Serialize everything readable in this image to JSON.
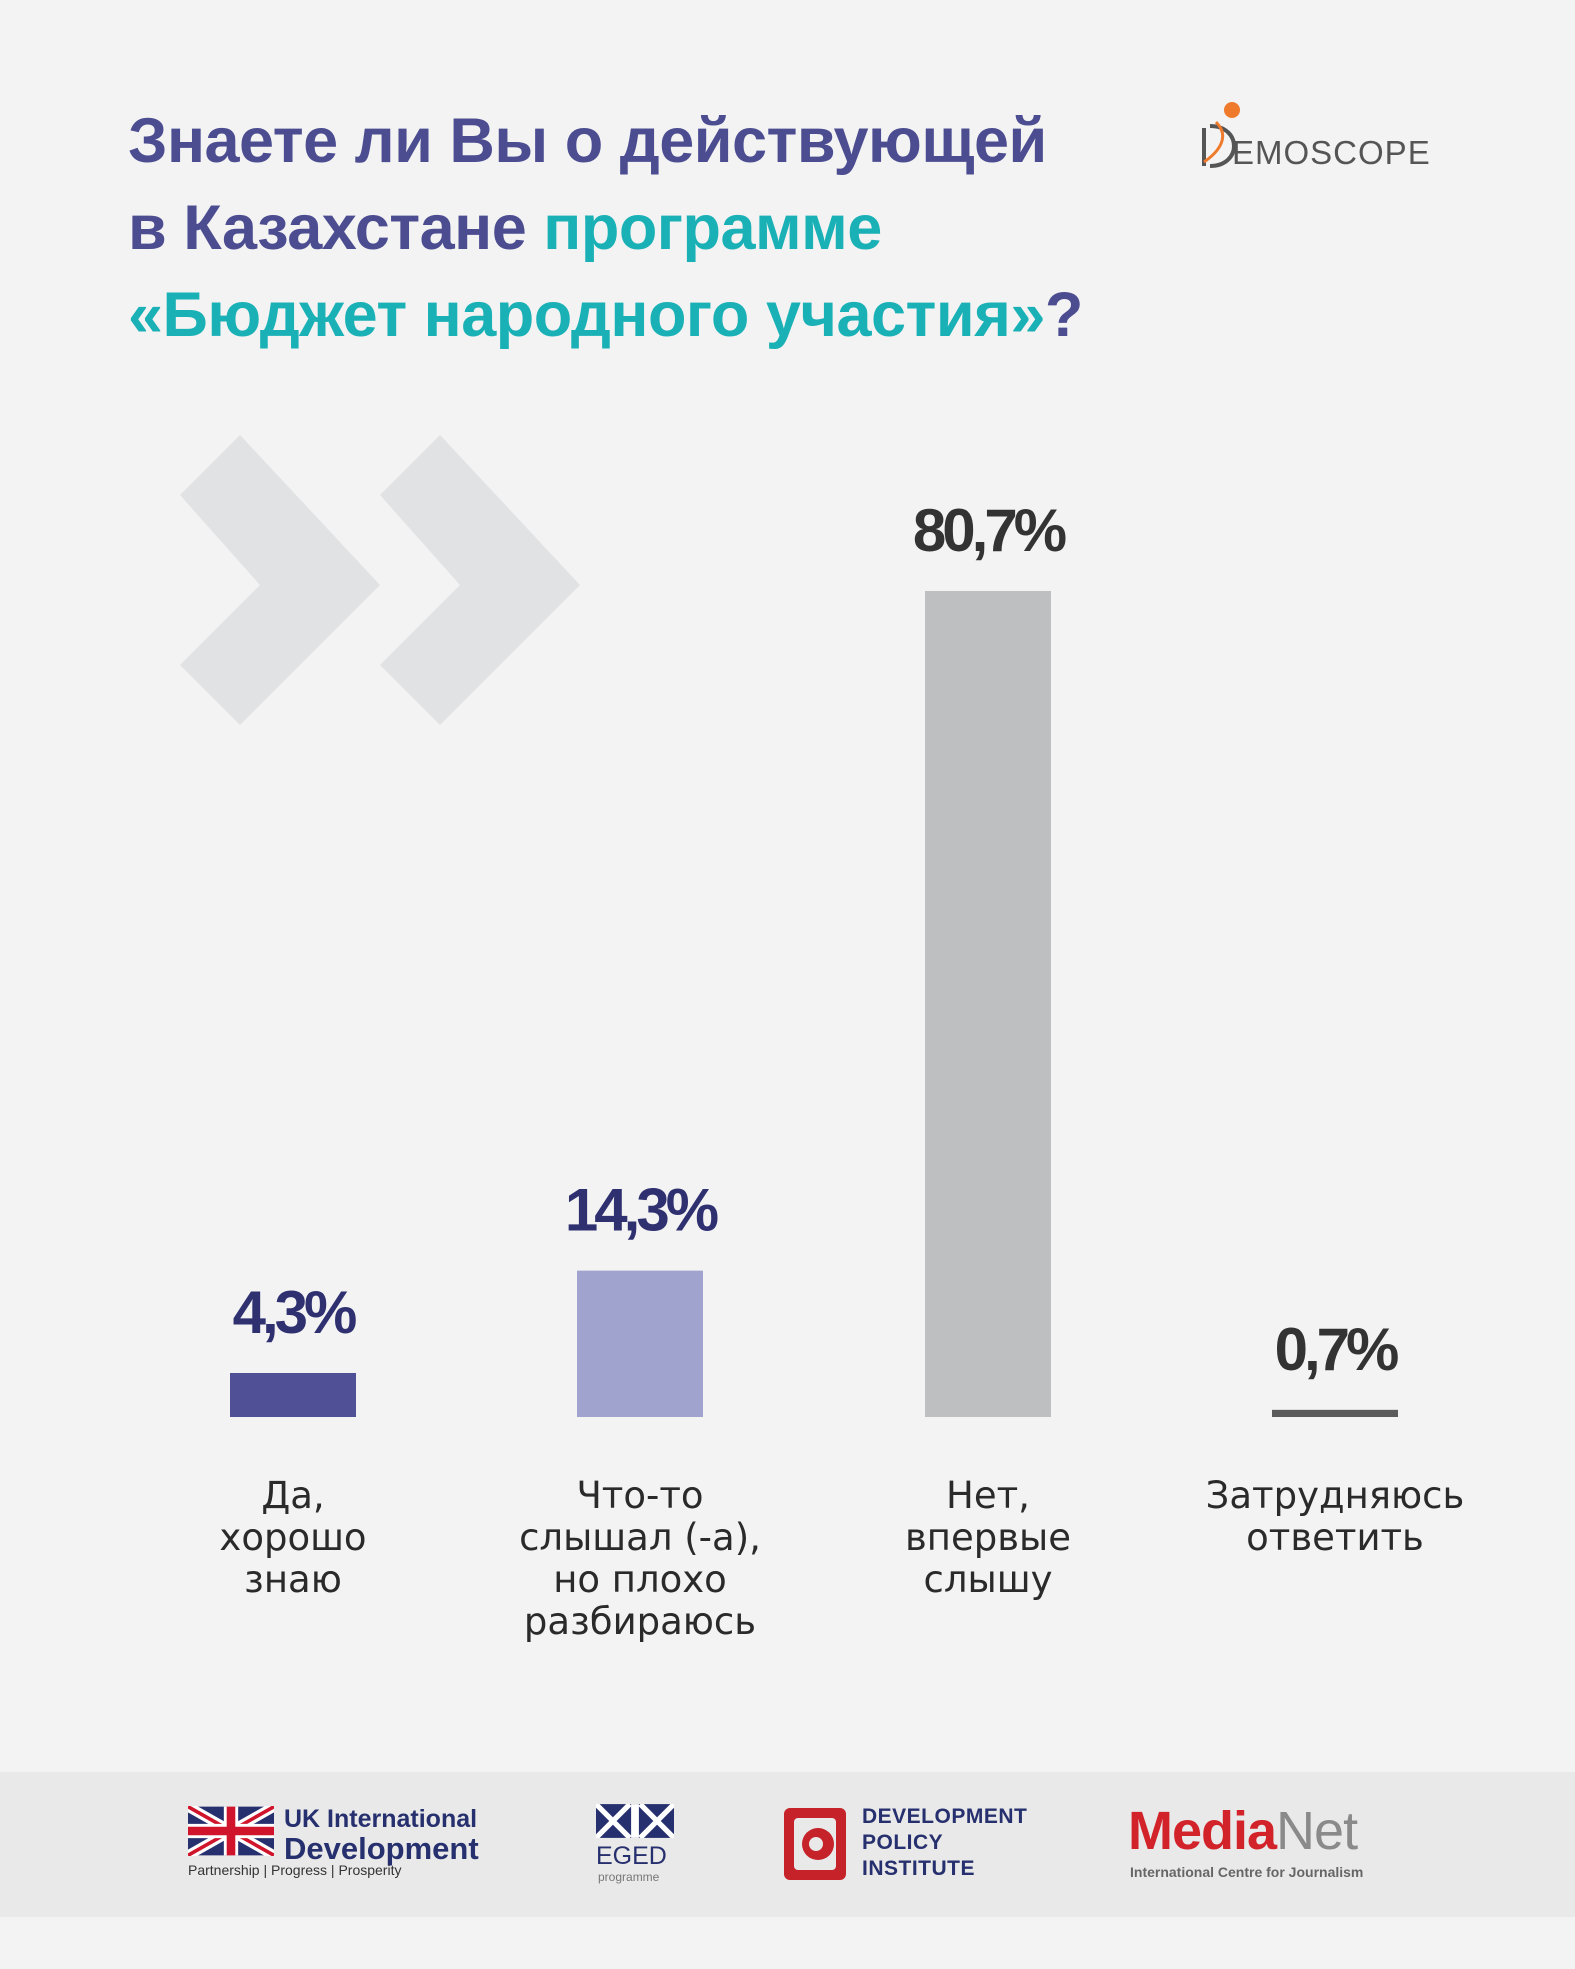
{
  "title": {
    "line1": "Знаете ли Вы о действующей",
    "line2_plain": "в Казахстане ",
    "line2_accent": "программе",
    "line3_accent": "«Бюджет народного участия»",
    "line3_end": "?"
  },
  "brand": {
    "word": "EMOSCOPE"
  },
  "colors": {
    "title": "#4c4d91",
    "accent": "#1ab1b6",
    "bar_yes": "#4f5096",
    "bar_partly": "#a1a3cf",
    "bar_no": "#bebfc1",
    "bar_hard": "#5b5b5b"
  },
  "chart_data": {
    "type": "bar",
    "title": "Знаете ли Вы о действующей в Казахстане программе «Бюджет народного участия»?",
    "categories": [
      [
        "Да,",
        "хорошо",
        "знаю"
      ],
      [
        "Что-то",
        "слышал (-а),",
        "но плохо",
        "разбираюсь"
      ],
      [
        "Нет,",
        "впервые",
        "слышу"
      ],
      [
        "Затрудняюсь",
        "ответить"
      ]
    ],
    "values": [
      4.3,
      14.3,
      80.7,
      0.7
    ],
    "value_labels": [
      "4,3%",
      "14,3%",
      "80,7%",
      "0,7%"
    ],
    "bar_colors": [
      "#4f5096",
      "#a1a3cf",
      "#bebfc1",
      "#5b5b5b"
    ],
    "label_colors": [
      "#2f3070",
      "#2f3070",
      "#333333",
      "#333333"
    ],
    "ylim": [
      0,
      80.7
    ],
    "grid": false,
    "legend": "none"
  },
  "footer": {
    "ukid": {
      "line1": "UK International",
      "line2": "Development",
      "tagline": "Partnership   |   Progress   |   Prosperity"
    },
    "eged": {
      "name": "EGED",
      "sub": "programme"
    },
    "dpi": {
      "line1": "DEVELOPMENT",
      "line2": "POLICY",
      "line3": "INSTITUTE"
    },
    "medianet": {
      "name1": "Media",
      "name2": "Net",
      "sub": "International Centre for Journalism"
    }
  }
}
